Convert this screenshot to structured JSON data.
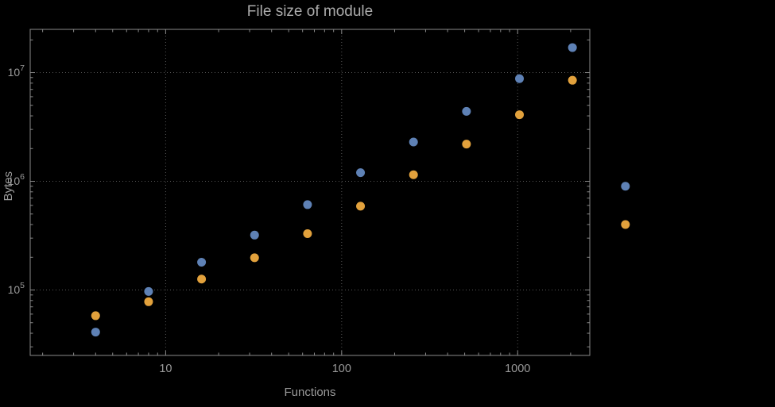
{
  "chart_data": {
    "type": "scatter",
    "title": "File size of module",
    "xlabel": "Functions",
    "ylabel": "Bytes",
    "x_scale": "log",
    "y_scale": "log",
    "grid": "dotted",
    "legend": "none",
    "x_ticks": [
      10,
      100,
      1000
    ],
    "y_ticks": [
      100000,
      1000000,
      10000000
    ],
    "xlim": [
      1.7,
      2570
    ],
    "ylim": [
      25000,
      25000000
    ],
    "colors": {
      "frame": "#8a8a8a",
      "grid": "#585858",
      "tick": "#8a8a8a",
      "label": "#9a9a9a",
      "title": "#ababab"
    },
    "series": [
      {
        "name": "series-1",
        "color": "#5e81b5",
        "points": [
          [
            4,
            41000
          ],
          [
            8,
            97000
          ],
          [
            16,
            180000
          ],
          [
            32,
            320000
          ],
          [
            64,
            610000
          ],
          [
            128,
            1200000
          ],
          [
            256,
            2300000
          ],
          [
            512,
            4400000
          ],
          [
            1024,
            8800000
          ],
          [
            2048,
            17000000
          ],
          [
            4096,
            900000
          ]
        ]
      },
      {
        "name": "series-2",
        "color": "#e2a13c",
        "points": [
          [
            4,
            58000
          ],
          [
            8,
            78000
          ],
          [
            16,
            126000
          ],
          [
            32,
            198000
          ],
          [
            64,
            330000
          ],
          [
            128,
            590000
          ],
          [
            256,
            1150000
          ],
          [
            512,
            2200000
          ],
          [
            1024,
            4100000
          ],
          [
            2048,
            8500000
          ],
          [
            4096,
            400000
          ]
        ]
      }
    ]
  }
}
